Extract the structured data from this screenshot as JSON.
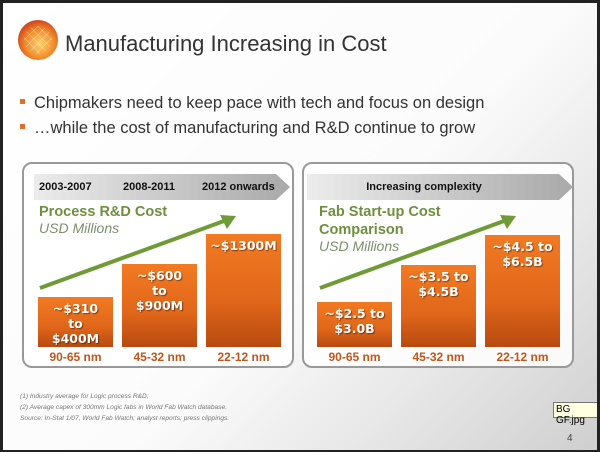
{
  "slide": {
    "title": "Manufacturing Increasing in Cost",
    "bullets": [
      "Chipmakers need to keep pace with tech and focus on design",
      "…while the cost of manufacturing and R&D continue to grow"
    ],
    "footnotes": [
      "(1) Industry average for Logic process R&D;",
      "(2) Average capex of 300mm Logic fabs in World Fab Watch database.",
      "Source: In-Stat 1/07, World Fab Watch; analyst reports; press clippings."
    ],
    "page_number": "4",
    "tooltip": "BG GF.jpg"
  },
  "colors": {
    "bar": "#e66a1c",
    "trend": "#6f9a35",
    "title_green": "#6f8f3e",
    "nm_label": "#c0561c"
  },
  "chart_data": [
    {
      "type": "bar",
      "title": "Process R&D Cost",
      "ylabel": "USD Millions",
      "header_labels": [
        "2003-2007",
        "2008-2011",
        "2012 onwards"
      ],
      "categories": [
        "90-65 nm",
        "45-32 nm",
        "22-12 nm"
      ],
      "value_labels": [
        "~$310\nto\n$400M",
        "~$600\nto\n$900M",
        "~$1300M"
      ],
      "ranges": [
        [
          310,
          400
        ],
        [
          600,
          900
        ],
        [
          1300,
          1300
        ]
      ],
      "trend": "increasing"
    },
    {
      "type": "bar",
      "title": "Fab Start-up Cost Comparison",
      "title_lines": [
        "Fab Start-up Cost",
        "Comparison"
      ],
      "ylabel": "USD Millions",
      "header_labels": [
        "Increasing complexity"
      ],
      "categories": [
        "90-65 nm",
        "45-32 nm",
        "22-12 nm"
      ],
      "value_labels": [
        "~$2.5 to\n$3.0B",
        "~$3.5 to\n$4.5B",
        "~$4.5 to\n$6.5B"
      ],
      "ranges": [
        [
          2.5,
          3.0
        ],
        [
          3.5,
          4.5
        ],
        [
          4.5,
          6.5
        ]
      ],
      "trend": "increasing"
    }
  ]
}
